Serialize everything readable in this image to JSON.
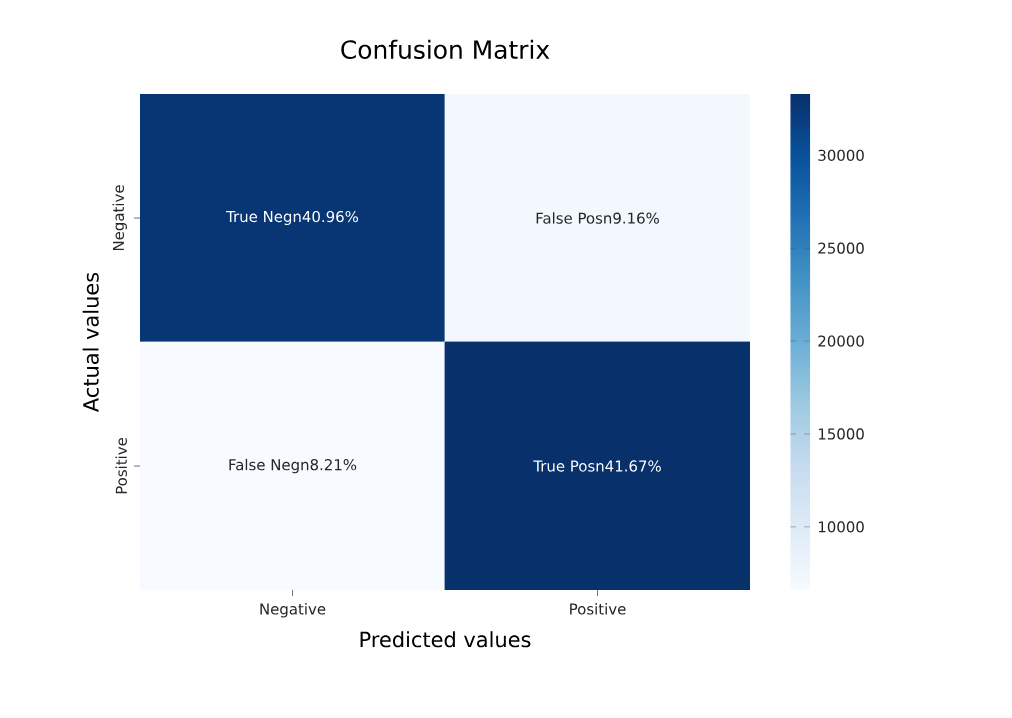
{
  "chart_data": {
    "type": "heatmap",
    "title": "Confusion Matrix",
    "xlabel": "Predicted values",
    "ylabel": "Actual values",
    "categories": [
      "Negative",
      "Positive"
    ],
    "y_categories": [
      "Negative",
      "Positive"
    ],
    "cells": [
      [
        32800,
        7300
      ],
      [
        6600,
        33300
      ]
    ],
    "cell_labels": [
      [
        "True Negn40.96%",
        "False Posn9.16%"
      ],
      [
        "False Negn8.21%",
        "True Posn41.67%"
      ]
    ],
    "clim": [
      6600,
      33300
    ],
    "cticks": [
      10000,
      15000,
      20000,
      25000,
      30000
    ]
  }
}
